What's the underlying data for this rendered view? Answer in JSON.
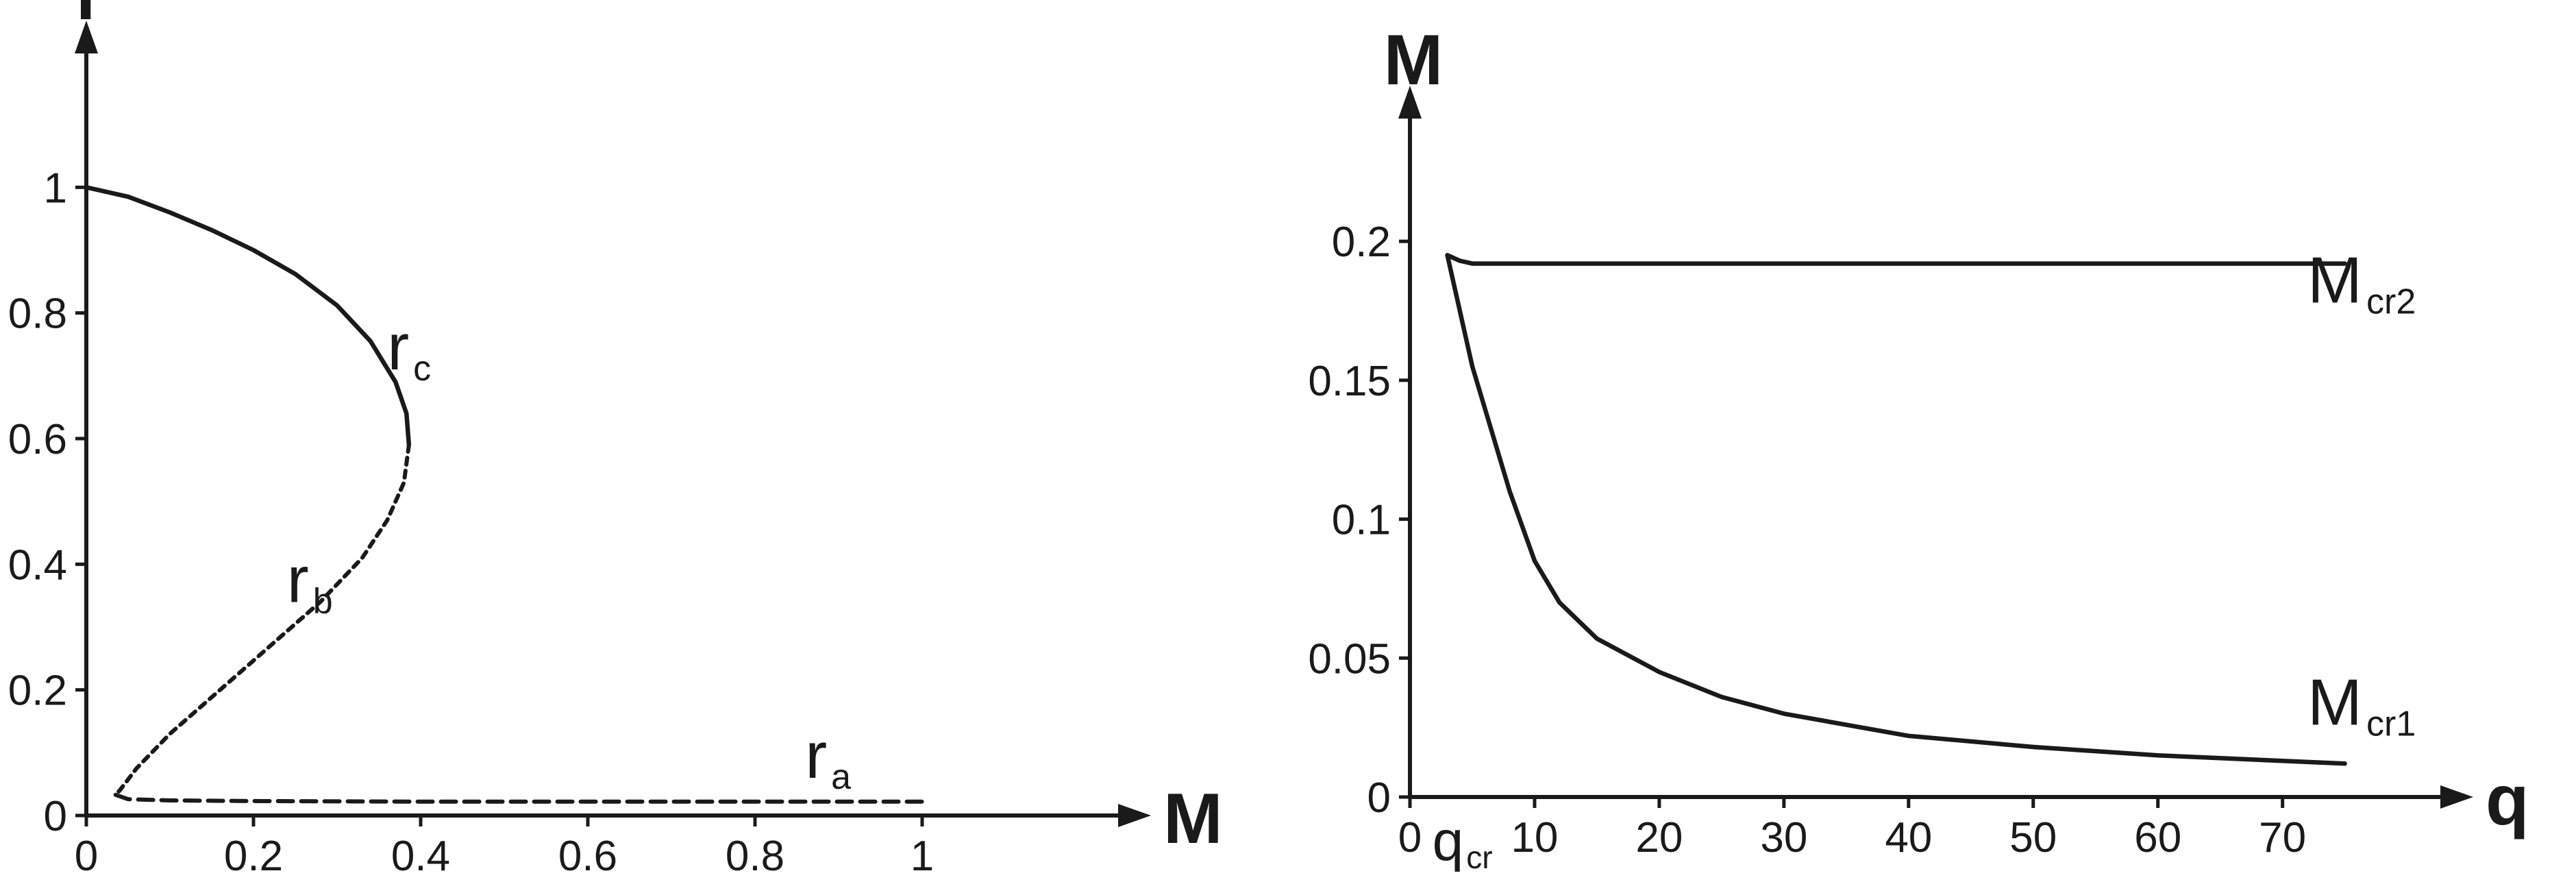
{
  "chart_data": [
    {
      "type": "line",
      "xlabel": "M",
      "ylabel": "r",
      "xlim": [
        0,
        1.2
      ],
      "ylim": [
        0,
        1.2
      ],
      "xticks": [
        "0",
        "0.2",
        "0.4",
        "0.6",
        "0.8",
        "1"
      ],
      "yticks": [
        "0",
        "0.2",
        "0.4",
        "0.6",
        "0.8",
        "1"
      ],
      "grid": false,
      "series": [
        {
          "label_main": "r",
          "label_sub": "c",
          "style": "solid",
          "label_at": [
            0.36,
            0.71
          ],
          "points": [
            [
              0.0,
              1.0
            ],
            [
              0.05,
              0.985
            ],
            [
              0.1,
              0.96
            ],
            [
              0.15,
              0.932
            ],
            [
              0.2,
              0.9
            ],
            [
              0.25,
              0.862
            ],
            [
              0.3,
              0.812
            ],
            [
              0.34,
              0.755
            ],
            [
              0.37,
              0.69
            ],
            [
              0.383,
              0.64
            ],
            [
              0.386,
              0.59
            ]
          ]
        },
        {
          "label_main": "r",
          "label_sub": "b",
          "style": "dotted",
          "label_at": [
            0.24,
            0.34
          ],
          "points": [
            [
              0.386,
              0.59
            ],
            [
              0.38,
              0.53
            ],
            [
              0.36,
              0.47
            ],
            [
              0.33,
              0.41
            ],
            [
              0.28,
              0.34
            ],
            [
              0.22,
              0.27
            ],
            [
              0.16,
              0.2
            ],
            [
              0.1,
              0.13
            ],
            [
              0.06,
              0.075
            ],
            [
              0.04,
              0.04
            ],
            [
              0.035,
              0.033
            ]
          ]
        },
        {
          "label_main": "r",
          "label_sub": "a",
          "style": "dashed",
          "label_at": [
            0.86,
            0.06
          ],
          "points": [
            [
              0.035,
              0.033
            ],
            [
              0.05,
              0.026
            ],
            [
              0.1,
              0.024
            ],
            [
              0.2,
              0.023
            ],
            [
              0.4,
              0.022
            ],
            [
              0.6,
              0.022
            ],
            [
              0.8,
              0.022
            ],
            [
              1.0,
              0.022
            ]
          ]
        }
      ]
    },
    {
      "type": "line",
      "xlabel": "q",
      "ylabel": "M",
      "xlim": [
        0,
        82
      ],
      "ylim": [
        0,
        0.24
      ],
      "xticks": [
        "0",
        "10",
        "20",
        "30",
        "40",
        "50",
        "60",
        "70"
      ],
      "yticks": [
        "0",
        "0.05",
        "0.1",
        "0.15",
        "0.2"
      ],
      "x_marker": {
        "value": 3,
        "label_main": "q",
        "label_sub": "cr"
      },
      "grid": false,
      "series": [
        {
          "label_main": "M",
          "label_sub": "cr2",
          "style": "solid",
          "label_at": [
            72,
            0.178
          ],
          "points": [
            [
              3,
              0.195
            ],
            [
              4,
              0.193
            ],
            [
              5,
              0.192
            ],
            [
              10,
              0.192
            ],
            [
              20,
              0.192
            ],
            [
              30,
              0.192
            ],
            [
              40,
              0.192
            ],
            [
              50,
              0.192
            ],
            [
              60,
              0.192
            ],
            [
              75,
              0.192
            ]
          ]
        },
        {
          "label_main": "M",
          "label_sub": "cr1",
          "style": "solid",
          "label_at": [
            72,
            0.026
          ],
          "points": [
            [
              3,
              0.195
            ],
            [
              4,
              0.175
            ],
            [
              5,
              0.155
            ],
            [
              6,
              0.14
            ],
            [
              8,
              0.11
            ],
            [
              10,
              0.085
            ],
            [
              12,
              0.07
            ],
            [
              15,
              0.057
            ],
            [
              20,
              0.045
            ],
            [
              25,
              0.036
            ],
            [
              30,
              0.03
            ],
            [
              40,
              0.022
            ],
            [
              50,
              0.018
            ],
            [
              60,
              0.015
            ],
            [
              75,
              0.012
            ]
          ]
        }
      ]
    }
  ]
}
